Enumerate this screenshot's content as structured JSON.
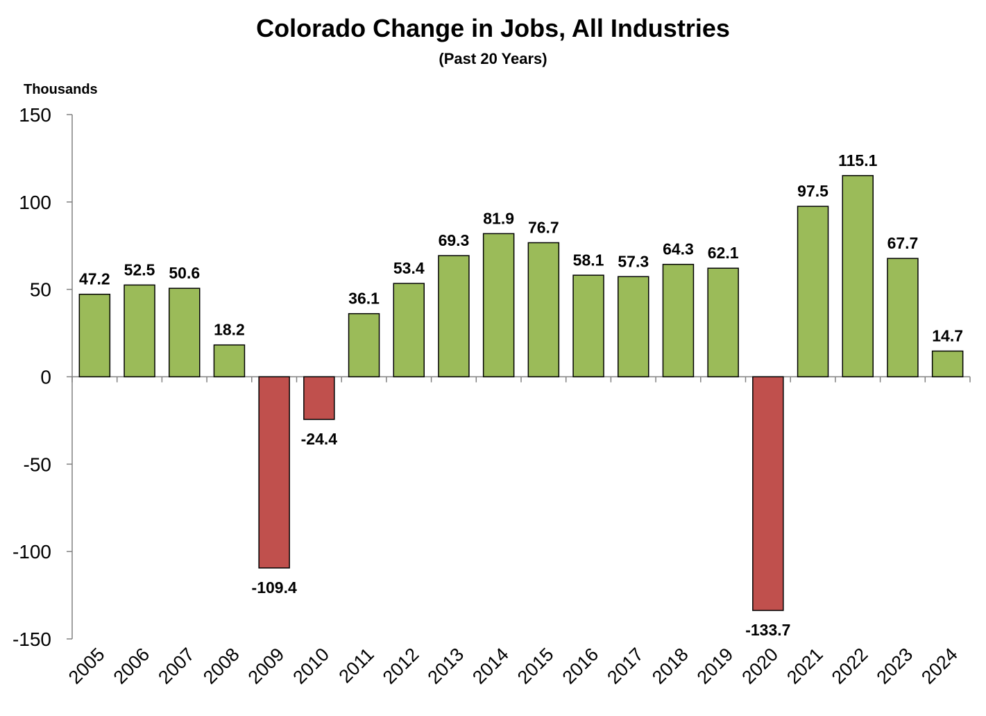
{
  "chart_data": {
    "type": "bar",
    "title": "Colorado Change in Jobs, All Industries",
    "subtitle": "(Past 20 Years)",
    "ylabel": "Thousands",
    "xlabel": "",
    "ylim": [
      -150,
      150
    ],
    "yticks": [
      150,
      100,
      50,
      0,
      -50,
      -100,
      -150
    ],
    "categories": [
      "2005",
      "2006",
      "2007",
      "2008",
      "2009",
      "2010",
      "2011",
      "2012",
      "2013",
      "2014",
      "2015",
      "2016",
      "2017",
      "2018",
      "2019",
      "2020",
      "2021",
      "2022",
      "2023",
      "2024"
    ],
    "values": [
      47.2,
      52.5,
      50.6,
      18.2,
      -109.4,
      -24.4,
      36.1,
      53.4,
      69.3,
      81.9,
      76.7,
      58.1,
      57.3,
      64.3,
      62.1,
      -133.7,
      97.5,
      115.1,
      67.7,
      14.7
    ],
    "grid": false,
    "legend": "none",
    "colors": {
      "positive": "#9BBB59",
      "negative": "#C0504D",
      "outline": "#000000"
    }
  }
}
